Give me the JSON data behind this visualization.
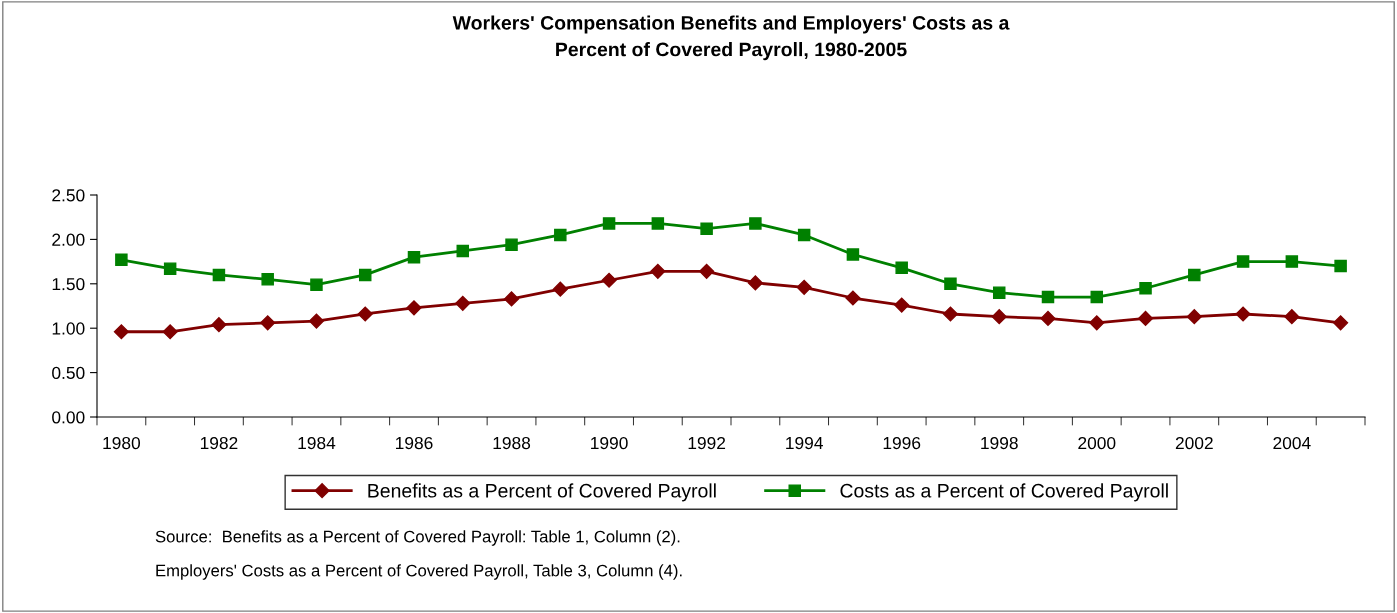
{
  "chart_data": {
    "type": "line",
    "title": "Workers' Compensation Benefits and Employers' Costs as a\nPercent of Covered Payroll, 1980-2005",
    "categories": [
      "1980",
      null,
      "1982",
      null,
      "1984",
      null,
      "1986",
      null,
      "1988",
      null,
      "1990",
      null,
      "1992",
      null,
      "1994",
      null,
      "1996",
      null,
      "1998",
      null,
      "2000",
      null,
      "2002",
      null,
      "2004",
      null
    ],
    "series": [
      {
        "name": "Benefits as a Percent of Covered Payroll",
        "color": "#800000",
        "marker": "diamond",
        "values": [
          0.96,
          0.96,
          1.04,
          1.06,
          1.08,
          1.16,
          1.23,
          1.28,
          1.33,
          1.44,
          1.54,
          1.64,
          1.64,
          1.51,
          1.46,
          1.34,
          1.26,
          1.16,
          1.13,
          1.11,
          1.06,
          1.11,
          1.13,
          1.16,
          1.13,
          1.06
        ]
      },
      {
        "name": "Costs as a Percent of Covered Payroll",
        "color": "#008000",
        "marker": "square",
        "values": [
          1.77,
          1.67,
          1.6,
          1.55,
          1.49,
          1.6,
          1.8,
          1.87,
          1.94,
          2.05,
          2.18,
          2.18,
          2.12,
          2.18,
          2.05,
          1.83,
          1.68,
          1.5,
          1.4,
          1.35,
          1.35,
          1.45,
          1.6,
          1.75,
          1.75,
          1.7
        ]
      }
    ],
    "ylim": [
      0,
      2.5
    ],
    "yticks": [
      {
        "value": 0,
        "label": "0.00"
      },
      {
        "value": 0.5,
        "label": "0.50"
      },
      {
        "value": 1,
        "label": "1.00"
      },
      {
        "value": 1.5,
        "label": "1.50"
      },
      {
        "value": 2,
        "label": "2.00"
      },
      {
        "value": 2.5,
        "label": "2.50"
      }
    ],
    "grid": false,
    "legend": "bottom",
    "line_style": "solid",
    "annotations": [
      "Source:  Benefits as a Percent of Covered Payroll: Table 1, Column (2).",
      "Employers' Costs as a Percent of Covered Payroll, Table 3, Column (4)."
    ]
  }
}
